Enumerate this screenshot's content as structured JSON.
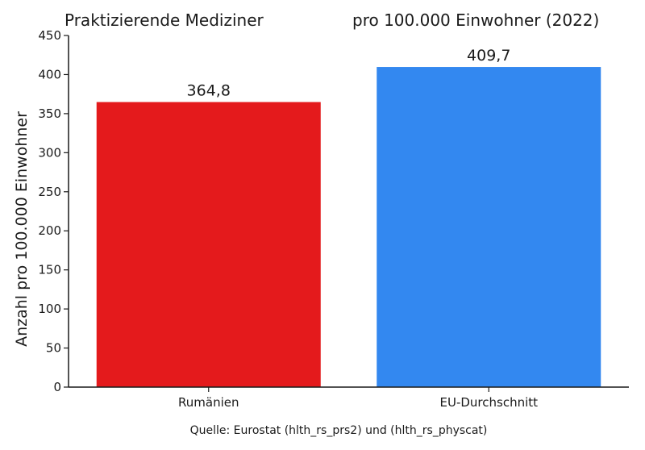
{
  "chart_data": {
    "type": "bar",
    "title_left": "Praktizierende Mediziner",
    "title_right": "pro 100.000 Einwohner (2022)",
    "xlabel": "",
    "ylabel": "Anzahl pro 100.000 Einwohner",
    "categories": [
      "Rumänien",
      "EU-Durchschnitt"
    ],
    "values": [
      364.8,
      409.7
    ],
    "value_labels": [
      "364,8",
      "409,7"
    ],
    "colors": [
      "#e41a1c",
      "#3388f0"
    ],
    "ylim": [
      0,
      450
    ],
    "yticks": [
      0,
      50,
      100,
      150,
      200,
      250,
      300,
      350,
      400,
      450
    ],
    "grid": false,
    "legend": "none",
    "source": "Quelle: Eurostat (hlth_rs_prs2) und (hlth_rs_physcat)"
  }
}
